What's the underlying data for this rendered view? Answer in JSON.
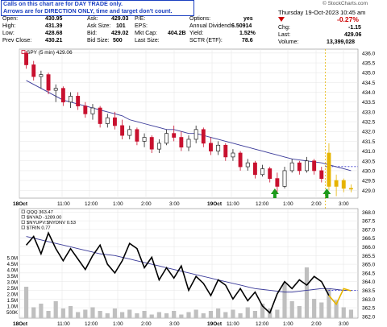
{
  "notice": {
    "line1": "Calls on this chart are for DAY TRADE only.",
    "line2": "Arrows are for DIRECTION ONLY, time and target don't count."
  },
  "watermark": "© StockCharts.com",
  "datetime": "Thursday  19-Oct-2023  10:45 am",
  "quote": {
    "open_label": "Open:",
    "open": "430.95",
    "high_label": "High:",
    "high": "431.39",
    "low_label": "Low:",
    "low": "428.68",
    "prev_label": "Prev Close:",
    "prev": "430.21",
    "ask_label": "Ask:",
    "ask": "429.03",
    "asksize_label": "Ask Size:",
    "asksize": "101",
    "bid_label": "Bid:",
    "bid": "429.02",
    "bidsize_label": "Bid Size:",
    "bidsize": "500",
    "pe_label": "P/E:",
    "pe": "",
    "eps_label": "EPS:",
    "eps": "",
    "mktcap_label": "Mkt Cap:",
    "mktcap": "404.2B",
    "lastsize_label": "Last Size:",
    "lastsize": "",
    "options_label": "Options:",
    "options": "yes",
    "dividend_label": "Annual Dividend:",
    "dividend": "6.50914",
    "yield_label": "Yield:",
    "yield": "1.52%",
    "sctr_label": "SCTR (ETF):",
    "sctr": "78.6",
    "change_pct": "-0.27%",
    "chg_label": "Chg:",
    "chg": "-1.15",
    "last_label": "Last:",
    "last": "429.06",
    "volume_label": "Volume:",
    "volume": "13,399,028",
    "accent_neg": "#cc0000"
  },
  "chart_data": [
    {
      "type": "candlestick",
      "legend": "SPY (5 min) 429.06",
      "x_ticks": [
        "18Oct",
        "11:00",
        "12:00",
        "1:00",
        "2:00",
        "3:00",
        "19Oct",
        "11:00",
        "12:00",
        "1:00",
        "2:00",
        "3:00"
      ],
      "y_ticks": [
        429.0,
        429.5,
        430.0,
        430.5,
        431.0,
        431.5,
        432.0,
        432.5,
        433.0,
        433.5,
        434.0,
        434.5,
        435.0,
        435.5,
        436.0
      ],
      "ylim": [
        428.6,
        436.2
      ],
      "ohlc": [
        [
          436.0,
          436.1,
          435.2,
          435.4
        ],
        [
          435.4,
          435.6,
          434.6,
          434.8
        ],
        [
          434.8,
          435.1,
          434.2,
          434.9
        ],
        [
          434.9,
          435.0,
          433.9,
          434.1
        ],
        [
          434.1,
          434.4,
          433.5,
          434.2
        ],
        [
          434.2,
          434.3,
          433.3,
          433.5
        ],
        [
          433.5,
          434.0,
          433.2,
          433.8
        ],
        [
          433.8,
          434.0,
          433.1,
          433.3
        ],
        [
          433.3,
          433.5,
          432.7,
          432.9
        ],
        [
          432.9,
          433.4,
          432.6,
          433.2
        ],
        [
          433.2,
          433.3,
          432.2,
          432.4
        ],
        [
          432.4,
          432.9,
          432.2,
          432.7
        ],
        [
          432.7,
          433.0,
          432.1,
          432.3
        ],
        [
          432.3,
          432.6,
          431.6,
          431.8
        ],
        [
          431.8,
          432.3,
          431.6,
          432.1
        ],
        [
          432.1,
          432.2,
          431.3,
          431.5
        ],
        [
          431.5,
          431.9,
          431.2,
          431.7
        ],
        [
          431.7,
          431.8,
          430.9,
          431.1
        ],
        [
          431.1,
          431.6,
          430.9,
          431.4
        ],
        [
          431.4,
          432.1,
          431.3,
          431.9
        ],
        [
          431.9,
          432.3,
          431.5,
          431.7
        ],
        [
          431.7,
          432.0,
          431.0,
          431.2
        ],
        [
          431.2,
          431.8,
          431.0,
          431.6
        ],
        [
          431.6,
          432.3,
          431.4,
          432.1
        ],
        [
          432.1,
          432.2,
          431.2,
          431.4
        ],
        [
          431.4,
          431.7,
          430.8,
          431.0
        ],
        [
          431.0,
          431.5,
          430.8,
          431.3
        ],
        [
          431.3,
          431.4,
          430.5,
          430.7
        ],
        [
          430.7,
          431.1,
          430.5,
          430.9
        ],
        [
          430.9,
          431.0,
          430.0,
          430.2
        ],
        [
          430.2,
          430.6,
          430.0,
          430.4
        ],
        [
          430.4,
          430.5,
          429.6,
          429.8
        ],
        [
          429.8,
          430.3,
          429.7,
          430.1
        ],
        [
          430.1,
          430.2,
          429.4,
          429.6
        ],
        [
          429.6,
          429.9,
          428.9,
          429.2
        ],
        [
          429.2,
          430.2,
          429.1,
          430.0
        ],
        [
          430.0,
          430.6,
          429.9,
          430.4
        ],
        [
          430.4,
          430.5,
          429.8,
          430.0
        ],
        [
          430.0,
          430.7,
          429.9,
          430.5
        ],
        [
          430.5,
          430.6,
          429.8,
          430.0
        ],
        [
          430.0,
          430.2,
          429.4,
          429.6
        ],
        [
          430.9,
          431.4,
          429.0,
          429.2
        ],
        [
          429.2,
          429.8,
          428.7,
          429.5
        ],
        [
          429.5,
          429.6,
          428.9,
          429.1
        ],
        [
          429.1,
          429.3,
          428.9,
          429.06
        ]
      ],
      "ma": [
        434.6,
        434.4,
        434.2,
        434.0,
        433.8,
        433.6,
        433.5,
        433.4,
        433.3,
        433.2,
        433.1,
        433.0,
        432.9,
        432.8,
        432.6,
        432.5,
        432.4,
        432.3,
        432.2,
        432.1,
        432.1,
        432.0,
        431.9,
        431.9,
        431.8,
        431.7,
        431.6,
        431.5,
        431.4,
        431.3,
        431.2,
        431.1,
        431.0,
        430.9,
        430.8,
        430.7,
        430.6,
        430.55,
        430.5,
        430.45,
        430.4,
        430.3,
        430.2,
        430.1,
        430.0
      ],
      "ref_price": 430.21,
      "gap_after_index": 40,
      "arrows_up_at": [
        34,
        41
      ]
    },
    {
      "type": "line",
      "legend": {
        "qqq": "QQQ 363.47",
        "nyad": "$NYAD -1289.00",
        "nyupv": "$NYUPV:$NYDNV 0.53",
        "trin": "$TRIN 0.77"
      },
      "y_ticks": [
        362.0,
        362.5,
        363.0,
        363.5,
        364.0,
        364.5,
        365.0,
        365.5,
        366.0,
        366.5,
        367.0,
        367.5,
        368.0
      ],
      "ylim": [
        361.9,
        368.2
      ],
      "vol_ticks": [
        "500K",
        "1.0M",
        "1.5M",
        "2.0M",
        "2.5M",
        "3.0M",
        "3.5M",
        "4.0M",
        "4.5M",
        "5.0M"
      ],
      "qqq": [
        366.1,
        366.6,
        365.6,
        366.8,
        365.9,
        365.2,
        365.9,
        365.3,
        364.7,
        365.5,
        366.1,
        365.0,
        364.5,
        365.2,
        366.2,
        365.9,
        364.8,
        365.4,
        364.1,
        364.8,
        364.2,
        364.9,
        363.5,
        364.3,
        363.9,
        363.2,
        364.1,
        363.8,
        363.0,
        363.6,
        362.9,
        363.4,
        362.6,
        362.2,
        363.3,
        364.0,
        363.6,
        364.1,
        363.8,
        364.3,
        364.0,
        363.2,
        362.7,
        363.6,
        363.47
      ],
      "ma": [
        366.6,
        366.5,
        366.4,
        366.3,
        366.2,
        366.1,
        366.0,
        365.9,
        365.8,
        365.7,
        365.6,
        365.55,
        365.5,
        365.4,
        365.3,
        365.2,
        365.1,
        365.0,
        364.9,
        364.8,
        364.7,
        364.6,
        364.5,
        364.4,
        364.3,
        364.2,
        364.1,
        364.0,
        363.9,
        363.8,
        363.7,
        363.6,
        363.55,
        363.5,
        363.45,
        363.4,
        363.4,
        363.45,
        363.5,
        363.55,
        363.6,
        363.6,
        363.55,
        363.5,
        363.5
      ],
      "volume_m": [
        2.6,
        0.9,
        1.2,
        0.6,
        1.4,
        0.8,
        1.0,
        0.5,
        0.7,
        0.9,
        0.6,
        0.4,
        0.8,
        0.5,
        0.7,
        0.4,
        0.6,
        0.3,
        0.5,
        0.4,
        0.6,
        0.3,
        0.5,
        0.7,
        0.4,
        0.6,
        0.8,
        0.5,
        0.7,
        0.4,
        0.9,
        0.6,
        1.2,
        0.8,
        0.7,
        2.9,
        1.4,
        1.0,
        4.2,
        1.6,
        1.3,
        2.4,
        1.5,
        0.9,
        0.7
      ],
      "ref_price": 363.5
    }
  ],
  "colors": {
    "up_candle": "#222222",
    "down_candle": "#c8102e",
    "ma": "#3a3a99",
    "volume": "#bfbfbf",
    "ref_line": "#3333cc",
    "vline": "#e6b400",
    "arrow": "#1c9a1c",
    "recent": "#e6b400"
  }
}
